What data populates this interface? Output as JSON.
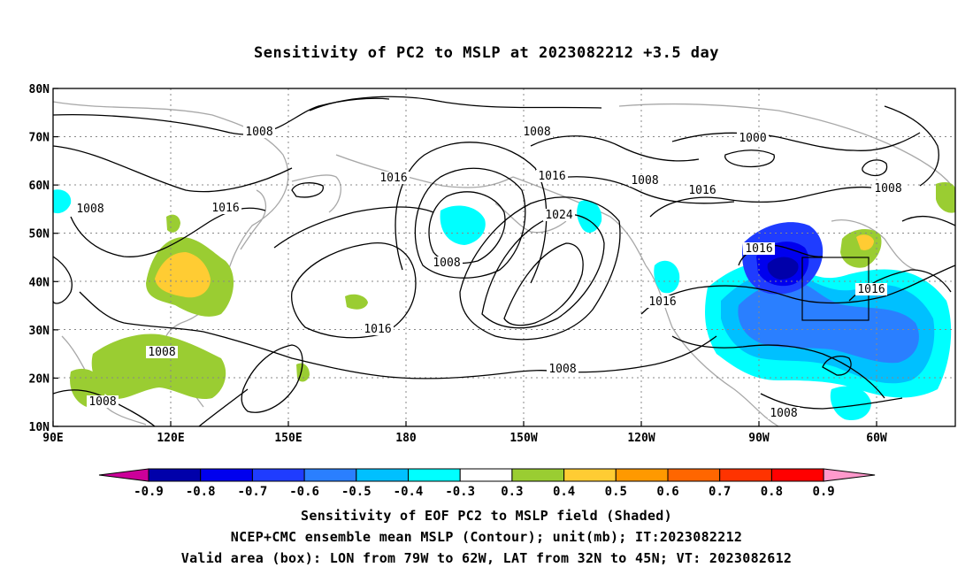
{
  "title": "Sensitivity of PC2 to MSLP at 2023082212 +3.5 day",
  "map": {
    "lon_ticks": [
      "90E",
      "120E",
      "150E",
      "180",
      "150W",
      "120W",
      "90W",
      "60W"
    ],
    "lat_ticks": [
      "80N",
      "70N",
      "60N",
      "50N",
      "40N",
      "30N",
      "20N",
      "10N"
    ],
    "contour_labels": [
      "1008",
      "1008",
      "1008",
      "1016",
      "1016",
      "1016",
      "1008",
      "1000",
      "1008",
      "1016",
      "1024",
      "1008",
      "1016",
      "1016",
      "1016",
      "1008",
      "1016",
      "1008",
      "1008",
      "1008"
    ],
    "valid_box": {
      "lon_from": "79W",
      "lon_to": "62W",
      "lat_from": "32N",
      "lat_to": "45N"
    }
  },
  "colorbar": {
    "labels": [
      "-0.9",
      "-0.8",
      "-0.7",
      "-0.6",
      "-0.5",
      "-0.4",
      "-0.3",
      "0.3",
      "0.4",
      "0.5",
      "0.6",
      "0.7",
      "0.8",
      "0.9"
    ],
    "colors": [
      "#0000aa",
      "#0000ee",
      "#1f3cff",
      "#2a7fff",
      "#00c0ff",
      "#00ffff",
      "#ffffff",
      "#9acd32",
      "#ffcc33",
      "#ff9900",
      "#ff6600",
      "#ff3300",
      "#ff0000"
    ],
    "low_arrow_color": "#cc0099",
    "high_arrow_color": "#ff99cc"
  },
  "footer": {
    "line1": "Sensitivity of EOF PC2 to MSLP field (Shaded)",
    "line2": "NCEP+CMC ensemble mean MSLP (Contour); unit(mb); IT:2023082212",
    "line3": "Valid area (box): LON from 79W to 62W, LAT from 32N to 45N; VT: 2023082612"
  }
}
